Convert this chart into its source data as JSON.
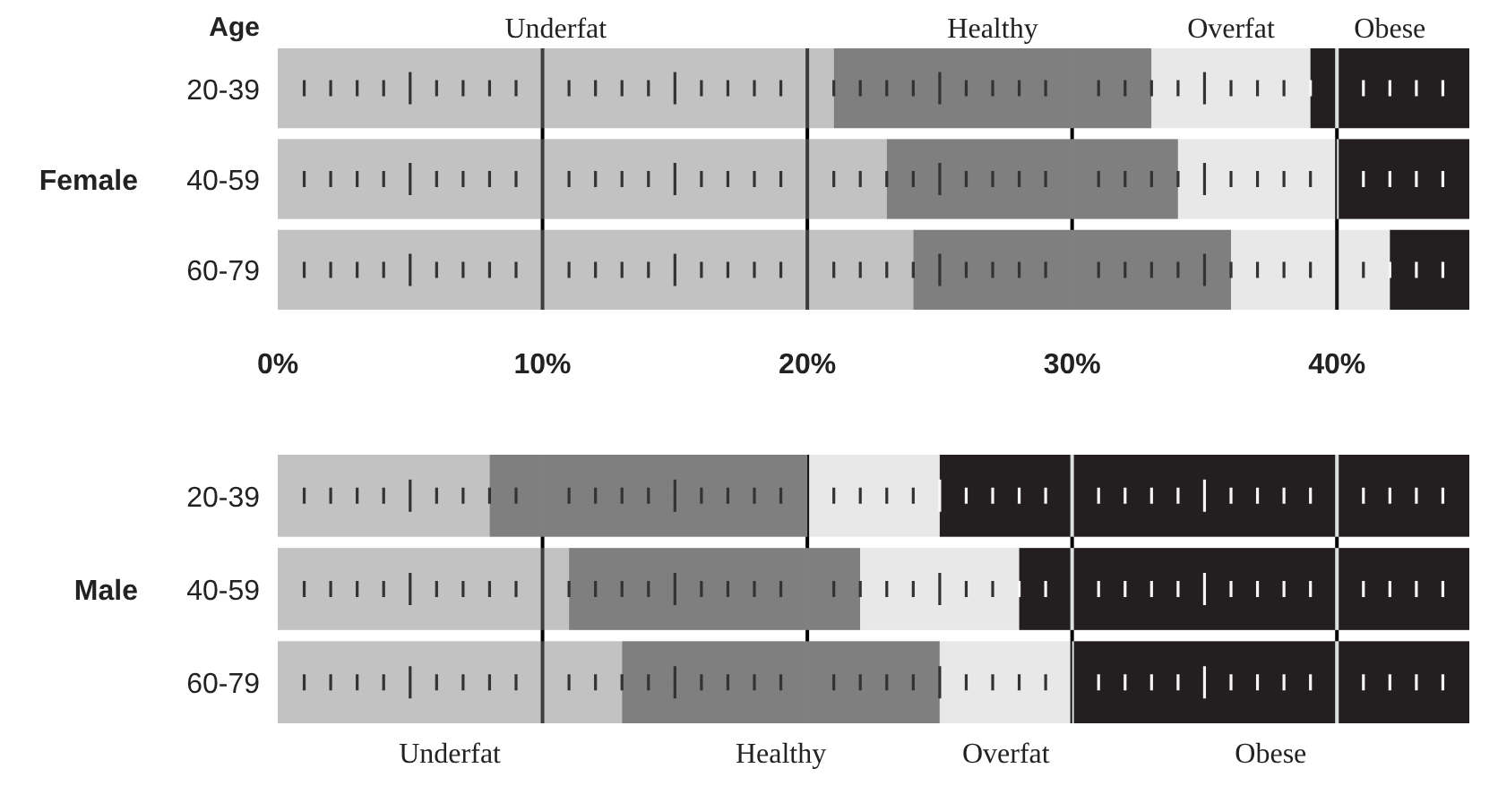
{
  "chart_data": [
    {
      "type": "bar",
      "orientation": "horizontal",
      "stacked": true,
      "ylabel": "Female",
      "annotations": [
        "Age"
      ],
      "categories": [
        "20-39",
        "40-59",
        "60-79"
      ],
      "series": [
        {
          "name": "Underfat",
          "color": "#c2c2c2",
          "values": [
            21,
            23,
            24
          ]
        },
        {
          "name": "Healthy",
          "color": "#7f7f7f",
          "values": [
            12,
            11,
            12
          ]
        },
        {
          "name": "Overfat",
          "color": "#e8e8e8",
          "values": [
            6,
            6,
            6
          ]
        },
        {
          "name": "Obese",
          "color": "#231f20",
          "values": [
            6,
            5,
            3
          ]
        }
      ],
      "xlim": [
        0,
        45
      ],
      "xticks": [
        {
          "value": 0,
          "label": "0%"
        },
        {
          "value": 10,
          "label": "10%"
        },
        {
          "value": 20,
          "label": "20%"
        },
        {
          "value": 30,
          "label": "30%"
        },
        {
          "value": 40,
          "label": "40%"
        }
      ],
      "grid": "x"
    },
    {
      "type": "bar",
      "orientation": "horizontal",
      "stacked": true,
      "ylabel": "Male",
      "categories": [
        "20-39",
        "40-59",
        "60-79"
      ],
      "series": [
        {
          "name": "Underfat",
          "color": "#c2c2c2",
          "values": [
            8,
            11,
            13
          ]
        },
        {
          "name": "Healthy",
          "color": "#7f7f7f",
          "values": [
            12,
            11,
            12
          ]
        },
        {
          "name": "Overfat",
          "color": "#e8e8e8",
          "values": [
            5,
            6,
            5
          ]
        },
        {
          "name": "Obese",
          "color": "#231f20",
          "values": [
            20,
            17,
            15
          ]
        }
      ],
      "xlim": [
        0,
        45
      ],
      "xticks": [
        0,
        10,
        20,
        30,
        40
      ],
      "grid": "x",
      "tick_labels": "y"
    }
  ]
}
